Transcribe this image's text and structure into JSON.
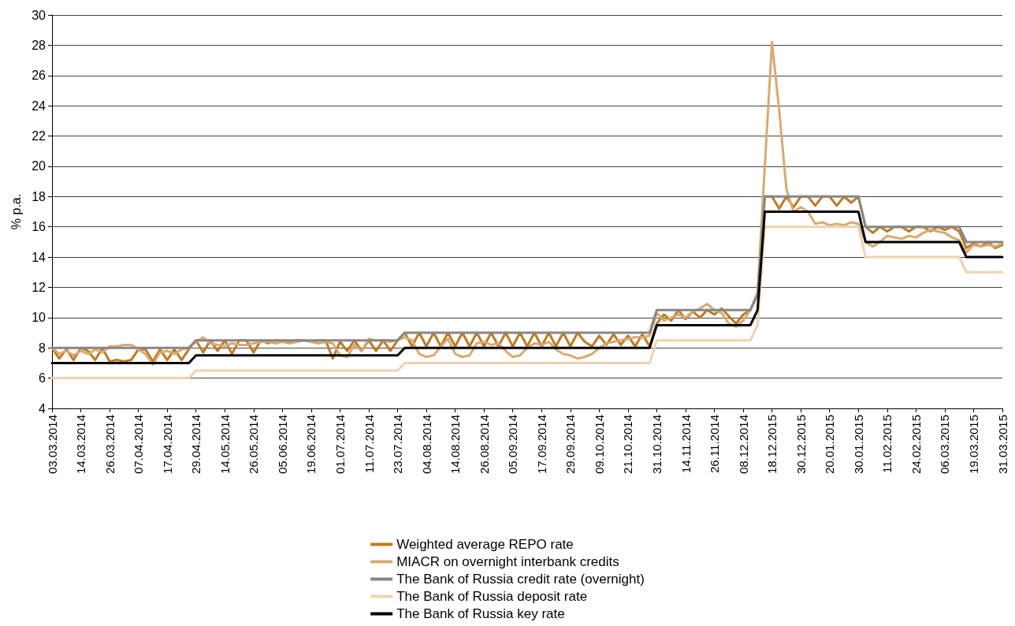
{
  "chart_data": {
    "type": "line",
    "ylabel": "% p.a.",
    "categories": [
      "03.03.2014",
      null,
      null,
      null,
      "14.03.2014",
      null,
      null,
      null,
      "26.03.2014",
      null,
      null,
      null,
      "07.04.2014",
      null,
      null,
      null,
      "17.04.2014",
      null,
      null,
      null,
      "29.04.2014",
      null,
      null,
      null,
      "14.05.2014",
      null,
      null,
      null,
      "26.05.2014",
      null,
      null,
      null,
      "05.06.2014",
      null,
      null,
      null,
      "19.06.2014",
      null,
      null,
      null,
      "01.07.2014",
      null,
      null,
      null,
      "11.07.2014",
      null,
      null,
      null,
      "23.07.2014",
      null,
      null,
      null,
      "04.08.2014",
      null,
      null,
      null,
      "14.08.2014",
      null,
      null,
      null,
      "26.08.2014",
      null,
      null,
      null,
      "05.09.2014",
      null,
      null,
      null,
      "17.09.2014",
      null,
      null,
      null,
      "29.09.2014",
      null,
      null,
      null,
      "09.10.2014",
      null,
      null,
      null,
      "21.10.2014",
      null,
      null,
      null,
      "31.10.2014",
      null,
      null,
      null,
      "14.11.2014",
      null,
      null,
      null,
      "26.11.2014",
      null,
      null,
      null,
      "08.12.2014",
      null,
      null,
      null,
      "18.12.2015",
      null,
      null,
      null,
      "30.12.2015",
      null,
      null,
      null,
      "20.01.2015",
      null,
      null,
      null,
      "30.01.2015",
      null,
      null,
      null,
      "11.02.2015",
      null,
      null,
      null,
      "24.02.2015",
      null,
      null,
      null,
      "06.03.2015",
      null,
      null,
      null,
      "19.03.2015",
      null,
      null,
      null,
      "31.03.2015"
    ],
    "series": [
      {
        "name": "Weighted average REPO rate",
        "color": "#c07a20",
        "values": [
          8,
          7.3,
          7.9,
          7.2,
          8,
          7.8,
          7.2,
          8,
          7.1,
          7.2,
          7.1,
          7.2,
          7.9,
          7.9,
          7.1,
          7.9,
          7.2,
          7.9,
          7.2,
          7.9,
          8.5,
          7.7,
          8.5,
          7.8,
          8.5,
          7.6,
          8.5,
          8.5,
          7.7,
          8.5,
          8.3,
          8.5,
          8.4,
          8.4,
          8.5,
          8.5,
          8.4,
          8.5,
          8.5,
          7.3,
          8.4,
          7.8,
          8.5,
          7.8,
          8.5,
          7.8,
          8.5,
          7.8,
          8.5,
          9,
          8.1,
          9,
          8.1,
          9,
          8.1,
          9,
          8.1,
          9,
          8.1,
          9,
          8.1,
          9,
          8.1,
          9,
          8.1,
          9,
          8.1,
          9,
          8.1,
          9,
          8.1,
          9,
          8.1,
          9,
          8.4,
          8.1,
          8.8,
          8.2,
          8.9,
          8.2,
          8.8,
          8.1,
          8.9,
          8.1,
          9.6,
          10.2,
          9.8,
          10.5,
          9.9,
          10.4,
          10,
          10.5,
          10.2,
          10.6,
          10.1,
          9.6,
          10.2,
          10.5,
          11.6,
          18,
          18,
          17.2,
          18,
          17.3,
          18,
          18,
          17.4,
          18,
          18,
          17.4,
          18,
          17.6,
          18,
          16,
          15.6,
          16,
          15.7,
          16,
          16,
          15.7,
          16,
          16,
          15.7,
          16,
          15.8,
          16,
          15.7,
          14.6,
          14.9,
          14.7,
          15,
          14.6,
          14.8
        ]
      },
      {
        "name": "MIACR on overnight interbank credits",
        "color": "#d9aa6e",
        "values": [
          8,
          7.6,
          7.8,
          7.5,
          7.8,
          7.6,
          7.9,
          7.7,
          8.1,
          8.1,
          8.2,
          8.2,
          7.9,
          7.6,
          6.9,
          7.7,
          7.8,
          7.6,
          7.9,
          8,
          8.4,
          8.7,
          8.3,
          8.2,
          8.1,
          8.3,
          8.2,
          8.2,
          8.3,
          8.4,
          8.4,
          8.3,
          8.4,
          8.3,
          8.4,
          8.5,
          8.4,
          8.3,
          8.4,
          8.3,
          7.5,
          7.4,
          8.2,
          7.8,
          8.6,
          8.5,
          8.5,
          8.4,
          8.5,
          8.7,
          8.5,
          7.6,
          7.4,
          7.5,
          8.1,
          8.6,
          7.6,
          7.4,
          7.5,
          8.3,
          8.4,
          8.2,
          8.3,
          7.8,
          7.4,
          7.5,
          8,
          8.3,
          8.2,
          8.4,
          7.9,
          7.6,
          7.5,
          7.3,
          7.4,
          7.6,
          8,
          8.3,
          8.4,
          8.5,
          8.6,
          8.7,
          8.7,
          8.8,
          10.3,
          9.8,
          10,
          10.2,
          10,
          10.4,
          10.6,
          10.9,
          10.5,
          10.3,
          9.6,
          9.4,
          9.8,
          10.5,
          11.7,
          20,
          28.2,
          23.7,
          18.5,
          17,
          17.3,
          17,
          16.2,
          16.3,
          16.1,
          16.2,
          16.1,
          16.3,
          16.2,
          15,
          14.7,
          15,
          15.4,
          15.3,
          15.2,
          15.4,
          15.3,
          15.6,
          15.8,
          15.7,
          15.6,
          15.3,
          15.1,
          14.3,
          14.8,
          14.7,
          14.8,
          14.7,
          14.9
        ]
      },
      {
        "name": "The Bank of Russia credit rate (overnight)",
        "color": "#878787",
        "values": [
          8,
          8,
          8,
          8,
          8,
          8,
          8,
          8,
          8,
          8,
          8,
          8,
          8,
          8,
          8,
          8,
          8,
          8,
          8,
          8,
          8.5,
          8.5,
          8.5,
          8.5,
          8.5,
          8.5,
          8.5,
          8.5,
          8.5,
          8.5,
          8.5,
          8.5,
          8.5,
          8.5,
          8.5,
          8.5,
          8.5,
          8.5,
          8.5,
          8.5,
          8.5,
          8.5,
          8.5,
          8.5,
          8.5,
          8.5,
          8.5,
          8.5,
          8.5,
          9,
          9,
          9,
          9,
          9,
          9,
          9,
          9,
          9,
          9,
          9,
          9,
          9,
          9,
          9,
          9,
          9,
          9,
          9,
          9,
          9,
          9,
          9,
          9,
          9,
          9,
          9,
          9,
          9,
          9,
          9,
          9,
          9,
          9,
          9,
          10.5,
          10.5,
          10.5,
          10.5,
          10.5,
          10.5,
          10.5,
          10.5,
          10.5,
          10.5,
          10.5,
          10.5,
          10.5,
          10.5,
          11.5,
          18,
          18,
          18,
          18,
          18,
          18,
          18,
          18,
          18,
          18,
          18,
          18,
          18,
          18,
          16,
          16,
          16,
          16,
          16,
          16,
          16,
          16,
          16,
          16,
          16,
          16,
          16,
          16,
          15,
          15,
          15,
          15,
          15,
          15
        ]
      },
      {
        "name": "The Bank of Russia deposit rate",
        "color": "#edd3b0",
        "values": [
          6,
          6,
          6,
          6,
          6,
          6,
          6,
          6,
          6,
          6,
          6,
          6,
          6,
          6,
          6,
          6,
          6,
          6,
          6,
          6,
          6.5,
          6.5,
          6.5,
          6.5,
          6.5,
          6.5,
          6.5,
          6.5,
          6.5,
          6.5,
          6.5,
          6.5,
          6.5,
          6.5,
          6.5,
          6.5,
          6.5,
          6.5,
          6.5,
          6.5,
          6.5,
          6.5,
          6.5,
          6.5,
          6.5,
          6.5,
          6.5,
          6.5,
          6.5,
          7,
          7,
          7,
          7,
          7,
          7,
          7,
          7,
          7,
          7,
          7,
          7,
          7,
          7,
          7,
          7,
          7,
          7,
          7,
          7,
          7,
          7,
          7,
          7,
          7,
          7,
          7,
          7,
          7,
          7,
          7,
          7,
          7,
          7,
          7,
          8.5,
          8.5,
          8.5,
          8.5,
          8.5,
          8.5,
          8.5,
          8.5,
          8.5,
          8.5,
          8.5,
          8.5,
          8.5,
          8.5,
          9.5,
          16,
          16,
          16,
          16,
          16,
          16,
          16,
          16,
          16,
          16,
          16,
          16,
          16,
          16,
          14,
          14,
          14,
          14,
          14,
          14,
          14,
          14,
          14,
          14,
          14,
          14,
          14,
          14,
          13,
          13,
          13,
          13,
          13,
          13
        ]
      },
      {
        "name": "The Bank of Russia key rate",
        "color": "#000000",
        "values": [
          7,
          7,
          7,
          7,
          7,
          7,
          7,
          7,
          7,
          7,
          7,
          7,
          7,
          7,
          7,
          7,
          7,
          7,
          7,
          7,
          7.5,
          7.5,
          7.5,
          7.5,
          7.5,
          7.5,
          7.5,
          7.5,
          7.5,
          7.5,
          7.5,
          7.5,
          7.5,
          7.5,
          7.5,
          7.5,
          7.5,
          7.5,
          7.5,
          7.5,
          7.5,
          7.5,
          7.5,
          7.5,
          7.5,
          7.5,
          7.5,
          7.5,
          7.5,
          8,
          8,
          8,
          8,
          8,
          8,
          8,
          8,
          8,
          8,
          8,
          8,
          8,
          8,
          8,
          8,
          8,
          8,
          8,
          8,
          8,
          8,
          8,
          8,
          8,
          8,
          8,
          8,
          8,
          8,
          8,
          8,
          8,
          8,
          8,
          9.5,
          9.5,
          9.5,
          9.5,
          9.5,
          9.5,
          9.5,
          9.5,
          9.5,
          9.5,
          9.5,
          9.5,
          9.5,
          9.5,
          10.5,
          17,
          17,
          17,
          17,
          17,
          17,
          17,
          17,
          17,
          17,
          17,
          17,
          17,
          17,
          15,
          15,
          15,
          15,
          15,
          15,
          15,
          15,
          15,
          15,
          15,
          15,
          15,
          15,
          14,
          14,
          14,
          14,
          14,
          14
        ]
      }
    ],
    "ylim": [
      4,
      30
    ],
    "yticks": [
      4,
      6,
      8,
      10,
      12,
      14,
      16,
      18,
      20,
      22,
      24,
      26,
      28,
      30
    ],
    "grid": "y",
    "legend": "bottom",
    "marker": "none",
    "line_style": "solid"
  }
}
